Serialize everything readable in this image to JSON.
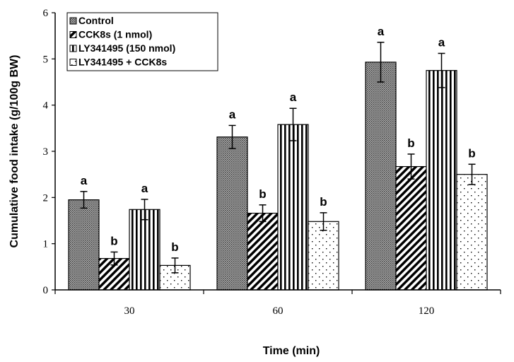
{
  "chart_data": {
    "type": "bar",
    "xlabel": "Time (min)",
    "ylabel": "Cumulative food intake (g/100g BW)",
    "ylim": [
      0,
      6
    ],
    "yticks": [
      "0",
      "1",
      "2",
      "3",
      "4",
      "5",
      "6"
    ],
    "categories": [
      "30",
      "60",
      "120"
    ],
    "legend_position": "top-left",
    "grid": false,
    "series": [
      {
        "name": "Control",
        "pattern": "dense-dots",
        "values": [
          1.95,
          3.31,
          4.93
        ],
        "errors": [
          0.18,
          0.25,
          0.43
        ],
        "labels": [
          "a",
          "a",
          "a"
        ]
      },
      {
        "name": "CCK8s (1 nmol)",
        "pattern": "diagonal",
        "values": [
          0.68,
          1.66,
          2.67
        ],
        "errors": [
          0.14,
          0.18,
          0.27
        ],
        "labels": [
          "b",
          "b",
          "b"
        ]
      },
      {
        "name": "LY341495 (150 nmol)",
        "pattern": "vertical",
        "values": [
          1.74,
          3.58,
          4.75
        ],
        "errors": [
          0.22,
          0.35,
          0.37
        ],
        "labels": [
          "a",
          "a",
          "a"
        ]
      },
      {
        "name": "LY341495 + CCK8s",
        "pattern": "sparse-dots",
        "values": [
          0.53,
          1.48,
          2.5
        ],
        "errors": [
          0.16,
          0.19,
          0.22
        ],
        "labels": [
          "b",
          "b",
          "b"
        ]
      }
    ]
  }
}
